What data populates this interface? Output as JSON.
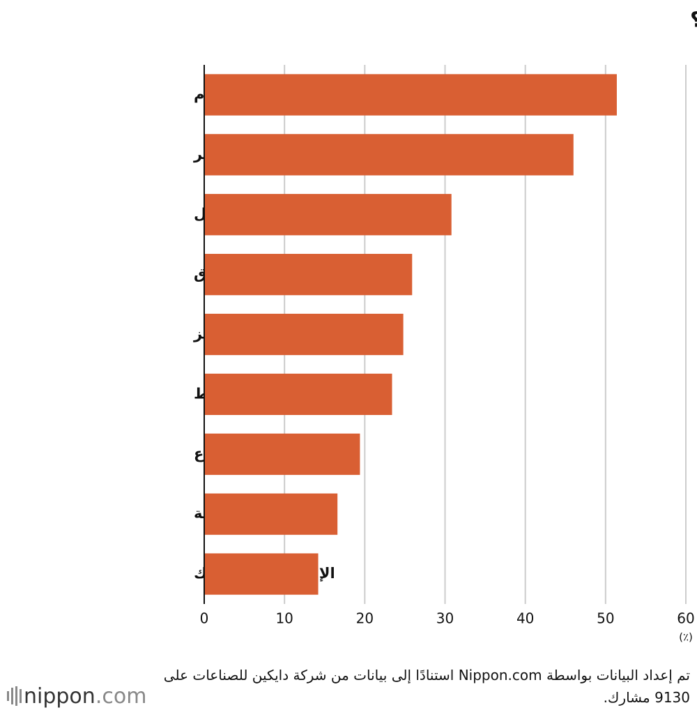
{
  "chart_data": {
    "type": "bar",
    "orientation": "horizontal",
    "title": "ما هي المشاكل الجسدية التي واجهتها بسبب ضربة الحر؟",
    "categories": [
      "انخفاض جودة النوم",
      "الشعور بالتعب المستمر",
      "الشعور بالضعف والخمول",
      "تشنجات الساق",
      "فقدان التركيز",
      "التعرق المفرط",
      "الصداع",
      "فقدان الشهية",
      "الإسهال أو الإمساك"
    ],
    "values": [
      51.4,
      46.0,
      30.8,
      25.9,
      24.8,
      23.4,
      19.4,
      16.6,
      14.2
    ],
    "color": "#d95f33",
    "xlim": [
      0,
      60
    ],
    "xticks": [
      0,
      10,
      20,
      30,
      40,
      50,
      60
    ],
    "grid": true,
    "x_unit": "(٪)",
    "source": "تم إعداد البيانات بواسطة Nippon.com استنادًا إلى بيانات من شركة دايكين للصناعات على 9130 مشارك.",
    "logo": {
      "name": "nippon",
      "suffix": ".com"
    }
  }
}
